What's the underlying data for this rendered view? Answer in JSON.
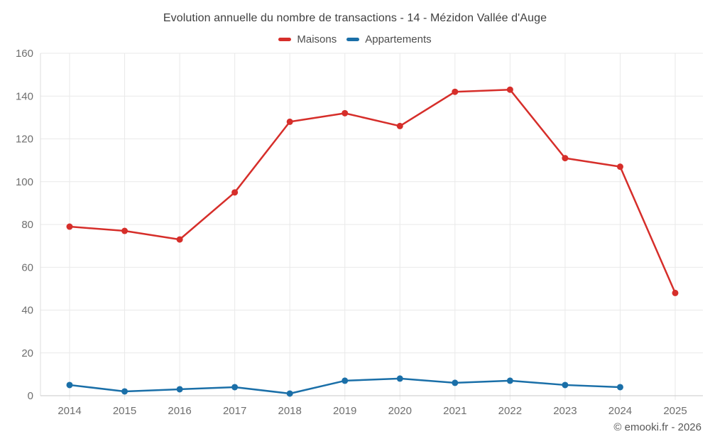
{
  "header": {
    "title": "Evolution annuelle du nombre de transactions - 14 - Mézidon Vallée d'Auge"
  },
  "footer": {
    "credit": "© emooki.fr - 2026"
  },
  "chart_data": {
    "type": "line",
    "title": "Evolution annuelle du nombre de transactions - 14 - Mézidon Vallée d'Auge",
    "categories": [
      "2014",
      "2015",
      "2016",
      "2017",
      "2018",
      "2019",
      "2020",
      "2021",
      "2022",
      "2023",
      "2024",
      "2025"
    ],
    "series": [
      {
        "name": "Maisons",
        "color": "#d62e2a",
        "values": [
          79,
          77,
          73,
          95,
          128,
          132,
          126,
          142,
          143,
          111,
          107,
          48
        ]
      },
      {
        "name": "Appartements",
        "color": "#1a6fa8",
        "values": [
          5,
          2,
          3,
          4,
          1,
          7,
          8,
          6,
          7,
          5,
          4,
          null
        ]
      }
    ],
    "xlabel": "",
    "ylabel": "",
    "ylim": [
      0,
      160
    ],
    "ytick_step": 20,
    "grid": true,
    "legend_position": "top",
    "colors": {
      "gridline": "#e9e9e9",
      "axis_x": "#c8c8c8",
      "axis_y": "#dcdcdc",
      "tick_text": "#6e6e6e"
    }
  }
}
